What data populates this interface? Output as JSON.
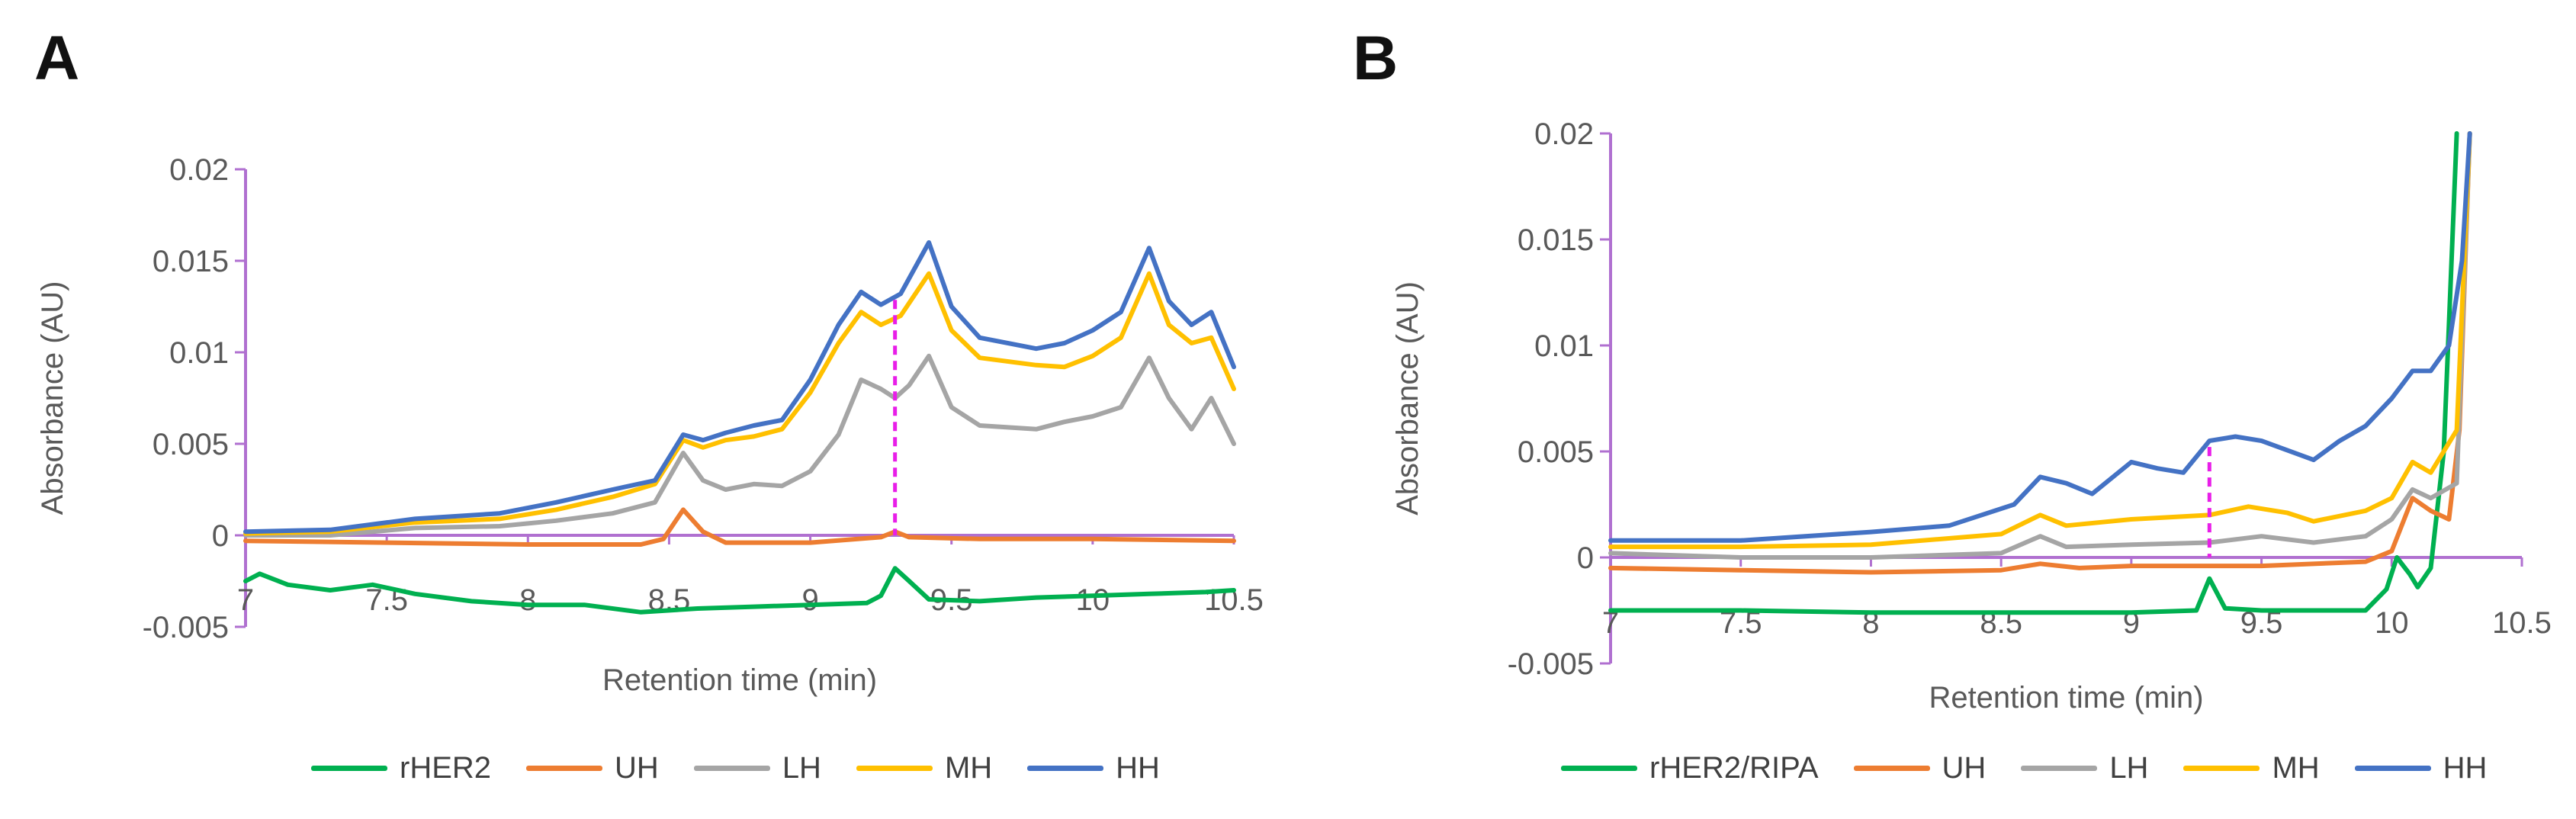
{
  "chart_data": [
    {
      "panel": "A",
      "type": "line",
      "xlabel": "Retention time (min)",
      "ylabel": "Absorbance (AU)",
      "xlim": [
        7,
        10.5
      ],
      "ylim": [
        -0.005,
        0.02
      ],
      "xticks": [
        "7",
        "7.5",
        "8",
        "8.5",
        "9",
        "9.5",
        "10",
        "10.5"
      ],
      "yticks": [
        "-0.005",
        "0",
        "0.005",
        "0.01",
        "0.015",
        "0.02"
      ],
      "reference_line_x": 9.3,
      "legend_position": "bottom",
      "series": [
        {
          "name": "rHER2",
          "color": "#00B050",
          "points": [
            [
              7,
              -0.0025
            ],
            [
              7.05,
              -0.0021
            ],
            [
              7.15,
              -0.0027
            ],
            [
              7.3,
              -0.003
            ],
            [
              7.45,
              -0.0027
            ],
            [
              7.6,
              -0.0032
            ],
            [
              7.8,
              -0.0036
            ],
            [
              8.0,
              -0.0038
            ],
            [
              8.2,
              -0.0038
            ],
            [
              8.4,
              -0.0042
            ],
            [
              8.6,
              -0.004
            ],
            [
              8.8,
              -0.0039
            ],
            [
              9.0,
              -0.0038
            ],
            [
              9.2,
              -0.0037
            ],
            [
              9.25,
              -0.0033
            ],
            [
              9.3,
              -0.0018
            ],
            [
              9.35,
              -0.0025
            ],
            [
              9.42,
              -0.0035
            ],
            [
              9.6,
              -0.0036
            ],
            [
              9.8,
              -0.0034
            ],
            [
              10.0,
              -0.0033
            ],
            [
              10.2,
              -0.0032
            ],
            [
              10.4,
              -0.0031
            ],
            [
              10.5,
              -0.003
            ]
          ]
        },
        {
          "name": "UH",
          "color": "#ED7D31",
          "points": [
            [
              7,
              -0.0003
            ],
            [
              7.5,
              -0.0004
            ],
            [
              8.0,
              -0.0005
            ],
            [
              8.4,
              -0.0005
            ],
            [
              8.48,
              -0.0002
            ],
            [
              8.55,
              0.0014
            ],
            [
              8.62,
              0.0002
            ],
            [
              8.7,
              -0.0004
            ],
            [
              9.0,
              -0.0004
            ],
            [
              9.25,
              -0.0001
            ],
            [
              9.3,
              0.0002
            ],
            [
              9.35,
              -0.0001
            ],
            [
              9.6,
              -0.0002
            ],
            [
              10.0,
              -0.0002
            ],
            [
              10.5,
              -0.0003
            ]
          ]
        },
        {
          "name": "LH",
          "color": "#A5A5A5",
          "points": [
            [
              7,
              0
            ],
            [
              7.3,
              0
            ],
            [
              7.6,
              0.0004
            ],
            [
              7.9,
              0.0005
            ],
            [
              8.1,
              0.0008
            ],
            [
              8.3,
              0.0012
            ],
            [
              8.45,
              0.0018
            ],
            [
              8.55,
              0.0045
            ],
            [
              8.62,
              0.003
            ],
            [
              8.7,
              0.0025
            ],
            [
              8.8,
              0.0028
            ],
            [
              8.9,
              0.0027
            ],
            [
              9.0,
              0.0035
            ],
            [
              9.1,
              0.0055
            ],
            [
              9.18,
              0.0085
            ],
            [
              9.25,
              0.008
            ],
            [
              9.3,
              0.0075
            ],
            [
              9.35,
              0.0082
            ],
            [
              9.42,
              0.0098
            ],
            [
              9.5,
              0.007
            ],
            [
              9.6,
              0.006
            ],
            [
              9.8,
              0.0058
            ],
            [
              9.9,
              0.0062
            ],
            [
              10.0,
              0.0065
            ],
            [
              10.1,
              0.007
            ],
            [
              10.2,
              0.0097
            ],
            [
              10.27,
              0.0075
            ],
            [
              10.35,
              0.0058
            ],
            [
              10.42,
              0.0075
            ],
            [
              10.5,
              0.005
            ]
          ]
        },
        {
          "name": "MH",
          "color": "#FFC000",
          "points": [
            [
              7,
              0.0001
            ],
            [
              7.3,
              0.0002
            ],
            [
              7.6,
              0.0007
            ],
            [
              7.9,
              0.0009
            ],
            [
              8.1,
              0.0014
            ],
            [
              8.3,
              0.0021
            ],
            [
              8.45,
              0.0028
            ],
            [
              8.55,
              0.0052
            ],
            [
              8.62,
              0.0048
            ],
            [
              8.7,
              0.0052
            ],
            [
              8.8,
              0.0054
            ],
            [
              8.9,
              0.0058
            ],
            [
              9.0,
              0.0078
            ],
            [
              9.1,
              0.0105
            ],
            [
              9.18,
              0.0122
            ],
            [
              9.25,
              0.0115
            ],
            [
              9.32,
              0.012
            ],
            [
              9.42,
              0.0143
            ],
            [
              9.5,
              0.0112
            ],
            [
              9.6,
              0.0097
            ],
            [
              9.8,
              0.0093
            ],
            [
              9.9,
              0.0092
            ],
            [
              10.0,
              0.0098
            ],
            [
              10.1,
              0.0108
            ],
            [
              10.2,
              0.0143
            ],
            [
              10.27,
              0.0115
            ],
            [
              10.35,
              0.0105
            ],
            [
              10.42,
              0.0108
            ],
            [
              10.5,
              0.008
            ]
          ]
        },
        {
          "name": "HH",
          "color": "#4472C4",
          "points": [
            [
              7,
              0.0002
            ],
            [
              7.3,
              0.0003
            ],
            [
              7.6,
              0.0009
            ],
            [
              7.9,
              0.0012
            ],
            [
              8.1,
              0.0018
            ],
            [
              8.3,
              0.0025
            ],
            [
              8.45,
              0.003
            ],
            [
              8.55,
              0.0055
            ],
            [
              8.62,
              0.0052
            ],
            [
              8.7,
              0.0056
            ],
            [
              8.8,
              0.006
            ],
            [
              8.9,
              0.0063
            ],
            [
              9.0,
              0.0085
            ],
            [
              9.1,
              0.0115
            ],
            [
              9.18,
              0.0133
            ],
            [
              9.25,
              0.0126
            ],
            [
              9.32,
              0.0132
            ],
            [
              9.42,
              0.016
            ],
            [
              9.5,
              0.0125
            ],
            [
              9.6,
              0.0108
            ],
            [
              9.8,
              0.0102
            ],
            [
              9.9,
              0.0105
            ],
            [
              10.0,
              0.0112
            ],
            [
              10.1,
              0.0122
            ],
            [
              10.2,
              0.0157
            ],
            [
              10.27,
              0.0128
            ],
            [
              10.35,
              0.0115
            ],
            [
              10.42,
              0.0122
            ],
            [
              10.5,
              0.0092
            ]
          ]
        }
      ]
    },
    {
      "panel": "B",
      "type": "line",
      "xlabel": "Retention time (min)",
      "ylabel": "Absorbance (AU)",
      "xlim": [
        7,
        10.5
      ],
      "ylim": [
        -0.005,
        0.02
      ],
      "xticks": [
        "7",
        "7.5",
        "8",
        "8.5",
        "9",
        "9.5",
        "10",
        "10.5"
      ],
      "yticks": [
        "-0.005",
        "0",
        "0.005",
        "0.01",
        "0.015",
        "0.02"
      ],
      "reference_line_x": 9.3,
      "legend_position": "bottom",
      "series": [
        {
          "name": "rHER2/RIPA",
          "color": "#00B050",
          "points": [
            [
              7,
              -0.0025
            ],
            [
              7.5,
              -0.0025
            ],
            [
              8.0,
              -0.0026
            ],
            [
              8.5,
              -0.0026
            ],
            [
              9.0,
              -0.0026
            ],
            [
              9.25,
              -0.0025
            ],
            [
              9.3,
              -0.001
            ],
            [
              9.36,
              -0.0024
            ],
            [
              9.5,
              -0.0025
            ],
            [
              9.9,
              -0.0025
            ],
            [
              9.98,
              -0.0015
            ],
            [
              10.02,
              0.0
            ],
            [
              10.07,
              -0.0008
            ],
            [
              10.1,
              -0.0014
            ],
            [
              10.15,
              -0.0005
            ],
            [
              10.2,
              0.005
            ],
            [
              10.25,
              0.02
            ]
          ]
        },
        {
          "name": "UH",
          "color": "#ED7D31",
          "points": [
            [
              7,
              -0.0005
            ],
            [
              7.5,
              -0.0006
            ],
            [
              8.0,
              -0.0007
            ],
            [
              8.5,
              -0.0006
            ],
            [
              8.65,
              -0.0003
            ],
            [
              8.8,
              -0.0005
            ],
            [
              9.0,
              -0.0004
            ],
            [
              9.5,
              -0.0004
            ],
            [
              9.9,
              -0.0002
            ],
            [
              10.0,
              0.0003
            ],
            [
              10.08,
              0.0028
            ],
            [
              10.15,
              0.0022
            ],
            [
              10.22,
              0.0018
            ],
            [
              10.26,
              0.006
            ],
            [
              10.3,
              0.02
            ]
          ]
        },
        {
          "name": "LH",
          "color": "#A5A5A5",
          "points": [
            [
              7,
              0.0002
            ],
            [
              7.5,
              0.0
            ],
            [
              8.0,
              0.0
            ],
            [
              8.5,
              0.0002
            ],
            [
              8.65,
              0.001
            ],
            [
              8.75,
              0.0005
            ],
            [
              9.0,
              0.0006
            ],
            [
              9.3,
              0.0007
            ],
            [
              9.5,
              0.001
            ],
            [
              9.7,
              0.0007
            ],
            [
              9.9,
              0.001
            ],
            [
              10.0,
              0.0018
            ],
            [
              10.08,
              0.0032
            ],
            [
              10.15,
              0.0028
            ],
            [
              10.25,
              0.0035
            ],
            [
              10.3,
              0.02
            ]
          ]
        },
        {
          "name": "MH",
          "color": "#FFC000",
          "points": [
            [
              7,
              0.0005
            ],
            [
              7.5,
              0.0005
            ],
            [
              8.0,
              0.0006
            ],
            [
              8.5,
              0.0011
            ],
            [
              8.65,
              0.002
            ],
            [
              8.75,
              0.0015
            ],
            [
              9.0,
              0.0018
            ],
            [
              9.3,
              0.002
            ],
            [
              9.45,
              0.0024
            ],
            [
              9.6,
              0.0021
            ],
            [
              9.7,
              0.0017
            ],
            [
              9.9,
              0.0022
            ],
            [
              10.0,
              0.0028
            ],
            [
              10.08,
              0.0045
            ],
            [
              10.15,
              0.004
            ],
            [
              10.25,
              0.006
            ],
            [
              10.3,
              0.02
            ]
          ]
        },
        {
          "name": "HH",
          "color": "#4472C4",
          "points": [
            [
              7,
              0.0008
            ],
            [
              7.5,
              0.0008
            ],
            [
              8.0,
              0.0012
            ],
            [
              8.3,
              0.0015
            ],
            [
              8.55,
              0.0025
            ],
            [
              8.65,
              0.0038
            ],
            [
              8.75,
              0.0035
            ],
            [
              8.85,
              0.003
            ],
            [
              9.0,
              0.0045
            ],
            [
              9.1,
              0.0042
            ],
            [
              9.2,
              0.004
            ],
            [
              9.3,
              0.0055
            ],
            [
              9.4,
              0.0057
            ],
            [
              9.5,
              0.0055
            ],
            [
              9.7,
              0.0046
            ],
            [
              9.8,
              0.0055
            ],
            [
              9.9,
              0.0062
            ],
            [
              10.0,
              0.0075
            ],
            [
              10.08,
              0.0088
            ],
            [
              10.15,
              0.0088
            ],
            [
              10.22,
              0.01
            ],
            [
              10.27,
              0.014
            ],
            [
              10.3,
              0.02
            ]
          ]
        }
      ]
    }
  ],
  "panels": [
    {
      "letter": "A",
      "legend": [
        "rHER2",
        "UH",
        "LH",
        "MH",
        "HH"
      ]
    },
    {
      "letter": "B",
      "legend": [
        "rHER2/RIPA",
        "UH",
        "LH",
        "MH",
        "HH"
      ]
    }
  ],
  "colors": {
    "axis": "#B070D0",
    "reference_line": "#E81EE8",
    "text": "#595959"
  }
}
